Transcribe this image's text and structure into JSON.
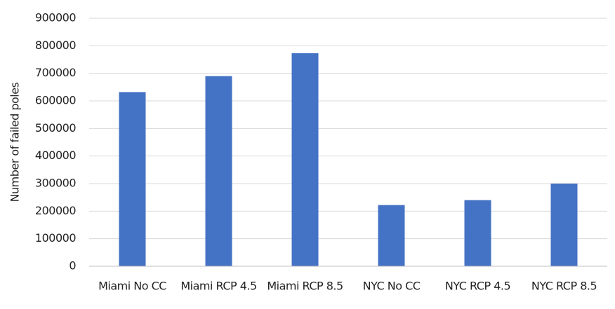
{
  "chart_data": {
    "type": "bar",
    "y_label": "Number of failed poles",
    "categories": [
      "Miami No CC",
      "Miami RCP 4.5",
      "Miami RCP 8.5",
      "NYC No CC",
      "NYC RCP 4.5",
      "NYC RCP 8.5"
    ],
    "values": [
      632000,
      690000,
      773000,
      222000,
      240000,
      300000
    ],
    "color": "#4472c4",
    "ylim": [
      0,
      900000
    ],
    "yticks": [
      0,
      100000,
      200000,
      300000,
      400000,
      500000,
      600000,
      700000,
      800000,
      900000
    ],
    "grid": true
  }
}
